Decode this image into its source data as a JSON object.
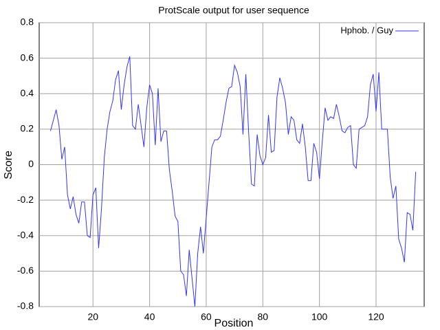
{
  "chart_data": {
    "type": "line",
    "title": "ProtScale output for  user  sequence",
    "x_label": "Position",
    "y_label": "Score",
    "x": [
      5,
      6,
      7,
      8,
      9,
      10,
      11,
      12,
      13,
      14,
      15,
      16,
      17,
      18,
      19,
      20,
      21,
      22,
      23,
      24,
      25,
      26,
      27,
      28,
      29,
      30,
      31,
      32,
      33,
      34,
      35,
      36,
      37,
      38,
      39,
      40,
      41,
      42,
      43,
      44,
      45,
      46,
      47,
      48,
      49,
      50,
      51,
      52,
      53,
      54,
      55,
      56,
      57,
      58,
      59,
      60,
      61,
      62,
      63,
      64,
      65,
      66,
      67,
      68,
      69,
      70,
      71,
      72,
      73,
      74,
      75,
      76,
      77,
      78,
      79,
      80,
      81,
      82,
      83,
      84,
      85,
      86,
      87,
      88,
      89,
      90,
      91,
      92,
      93,
      94,
      95,
      96,
      97,
      98,
      99,
      100,
      101,
      102,
      103,
      104,
      105,
      106,
      107,
      108,
      109,
      110,
      111,
      112,
      113,
      114,
      115,
      116,
      117,
      118,
      119,
      120,
      121,
      122,
      123,
      124,
      125,
      126,
      127,
      128,
      129,
      130,
      131,
      132,
      133,
      134
    ],
    "series": [
      {
        "name": "Hphob. /  Guy",
        "color": "#3333ff",
        "values": [
          0.19,
          0.25,
          0.31,
          0.22,
          0.03,
          0.1,
          -0.17,
          -0.25,
          -0.18,
          -0.28,
          -0.33,
          -0.21,
          -0.21,
          -0.4,
          -0.41,
          -0.17,
          -0.13,
          -0.47,
          -0.25,
          0.04,
          0.2,
          0.3,
          0.36,
          0.48,
          0.53,
          0.31,
          0.45,
          0.55,
          0.61,
          0.22,
          0.2,
          0.34,
          0.22,
          0.1,
          0.32,
          0.45,
          0.4,
          0.11,
          0.43,
          0.13,
          0.19,
          0.19,
          -0.03,
          -0.15,
          -0.29,
          -0.32,
          -0.6,
          -0.62,
          -0.74,
          -0.48,
          -0.64,
          -0.8,
          -0.5,
          -0.35,
          -0.5,
          -0.3,
          -0.1,
          0.1,
          0.14,
          0.14,
          0.16,
          0.25,
          0.35,
          0.43,
          0.44,
          0.56,
          0.52,
          0.44,
          0.17,
          0.51,
          0.18,
          -0.11,
          -0.12,
          0.17,
          0.05,
          0.0,
          0.04,
          0.28,
          0.07,
          0.08,
          0.38,
          0.49,
          0.43,
          0.35,
          0.17,
          0.27,
          0.25,
          0.14,
          0.12,
          0.23,
          0.1,
          -0.09,
          -0.09,
          0.12,
          0.07,
          -0.08,
          0.13,
          0.32,
          0.25,
          0.27,
          0.26,
          0.34,
          0.27,
          0.19,
          0.18,
          0.21,
          0.22,
          0.0,
          -0.02,
          0.2,
          0.21,
          0.22,
          0.27,
          0.45,
          0.51,
          0.3,
          0.52,
          0.2,
          0.2,
          0.2,
          -0.07,
          -0.19,
          -0.12,
          -0.42,
          -0.47,
          -0.55,
          -0.27,
          -0.28,
          -0.37,
          -0.04
        ]
      }
    ],
    "xlim": [
      1,
      137
    ],
    "xticks": [
      20,
      40,
      60,
      80,
      100,
      120
    ],
    "ylim": [
      -0.8,
      0.8
    ],
    "yticks": [
      0.8,
      0.6,
      0.4,
      0.2,
      0,
      -0.2,
      -0.4,
      -0.6,
      -0.8
    ],
    "grid": true,
    "legend": "top-right"
  }
}
